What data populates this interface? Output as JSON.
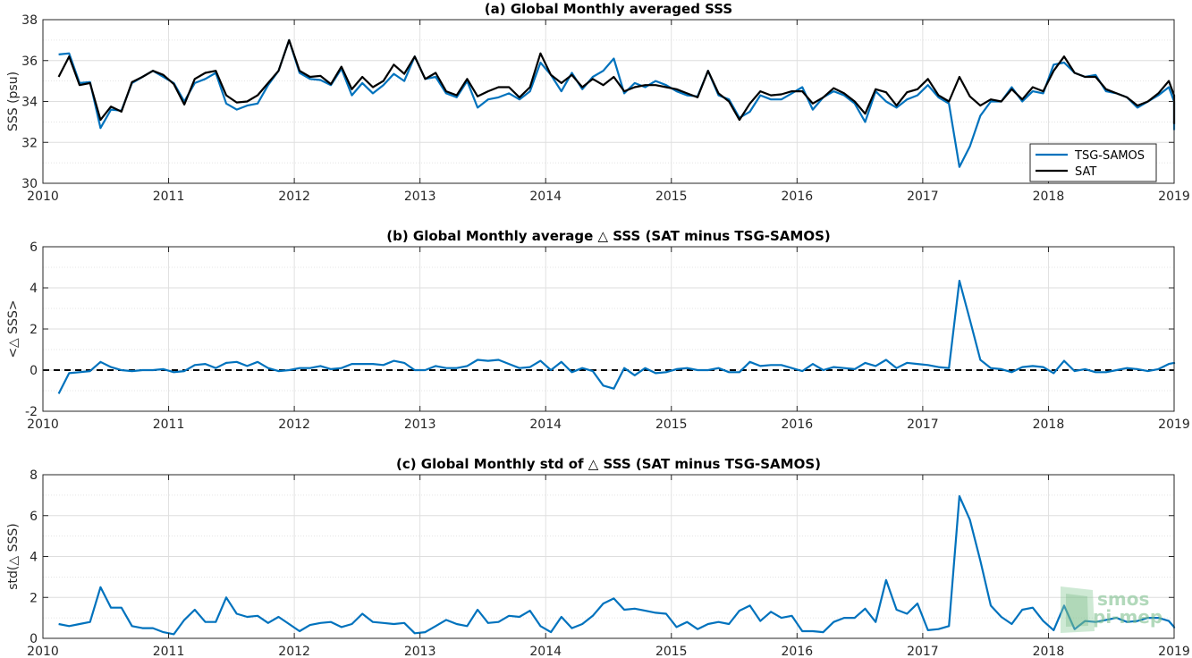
{
  "watermark": {
    "line1": "smos",
    "line2": "pi-mep"
  },
  "chart_data": [
    {
      "type": "line",
      "title": "(a) Global Monthly averaged SSS",
      "ylabel": "SSS (psu)",
      "xlabel": "",
      "xlim": [
        2010,
        2019
      ],
      "ylim": [
        30,
        38
      ],
      "xticks": [
        "2010",
        "2011",
        "2012",
        "2013",
        "2014",
        "2015",
        "2016",
        "2017",
        "2018",
        "2019"
      ],
      "yticks": [
        "30",
        "32",
        "34",
        "36",
        "38"
      ],
      "grid": true,
      "legend": "bottom-right",
      "series": [
        {
          "name": "TSG-SAMOS",
          "color": "#0072bd",
          "values": [
            36.3,
            36.35,
            34.9,
            34.95,
            32.7,
            33.6,
            33.55,
            34.9,
            35.2,
            35.5,
            35.2,
            34.9,
            34.0,
            34.9,
            35.1,
            35.4,
            33.9,
            33.6,
            33.8,
            33.9,
            34.8,
            35.5,
            37.0,
            35.4,
            35.1,
            35.05,
            34.8,
            35.6,
            34.3,
            34.9,
            34.4,
            34.8,
            35.35,
            35.0,
            36.2,
            35.1,
            35.2,
            34.4,
            34.2,
            35.0,
            33.7,
            34.1,
            34.2,
            34.4,
            34.1,
            34.5,
            35.9,
            35.3,
            34.5,
            35.4,
            34.6,
            35.2,
            35.5,
            36.1,
            34.4,
            34.9,
            34.7,
            35.0,
            34.8,
            34.5,
            34.3,
            34.25,
            35.5,
            34.3,
            34.1,
            33.2,
            33.5,
            34.3,
            34.1,
            34.1,
            34.4,
            34.7,
            33.6,
            34.2,
            34.5,
            34.3,
            33.9,
            33.0,
            34.5,
            34.0,
            33.7,
            34.1,
            34.3,
            34.8,
            34.2,
            33.9,
            30.8,
            31.8,
            33.3,
            34.0,
            34.0,
            34.7,
            34.0,
            34.5,
            34.4,
            35.8,
            35.9,
            35.4,
            35.2,
            35.3,
            34.5,
            34.4,
            34.2,
            33.7,
            34.0,
            34.3,
            34.7,
            34.0,
            32.6
          ]
        },
        {
          "name": "SAT",
          "color": "#000000",
          "values": [
            35.2,
            36.2,
            34.8,
            34.9,
            33.1,
            33.75,
            33.5,
            34.95,
            35.2,
            35.5,
            35.3,
            34.85,
            33.85,
            35.1,
            35.4,
            35.5,
            34.3,
            33.95,
            34.0,
            34.3,
            34.9,
            35.5,
            37.0,
            35.5,
            35.2,
            35.25,
            34.85,
            35.7,
            34.6,
            35.2,
            34.7,
            35.0,
            35.8,
            35.35,
            36.2,
            35.1,
            35.4,
            34.5,
            34.3,
            35.1,
            34.25,
            34.5,
            34.7,
            34.7,
            34.2,
            34.7,
            36.35,
            35.3,
            34.9,
            35.3,
            34.7,
            35.1,
            34.8,
            35.2,
            34.5,
            34.7,
            34.8,
            34.8,
            34.7,
            34.6,
            34.4,
            34.2,
            35.5,
            34.4,
            34.0,
            33.1,
            33.9,
            34.5,
            34.3,
            34.35,
            34.5,
            34.5,
            33.9,
            34.2,
            34.65,
            34.4,
            34.0,
            33.4,
            34.6,
            34.45,
            33.8,
            34.45,
            34.6,
            35.1,
            34.3,
            34.0,
            35.2,
            34.25,
            33.8,
            34.1,
            34.0,
            34.6,
            34.1,
            34.7,
            34.5,
            35.5,
            36.2,
            35.4,
            35.2,
            35.2,
            34.6,
            34.4,
            34.2,
            33.8,
            34.0,
            34.4,
            35.0,
            34.3,
            32.9
          ]
        }
      ]
    },
    {
      "type": "line",
      "title": "(b) Global Monthly average △ SSS (SAT minus TSG-SAMOS)",
      "ylabel": "<△ SSS>",
      "xlabel": "",
      "xlim": [
        2010,
        2019
      ],
      "ylim": [
        -2,
        6
      ],
      "xticks": [
        "2010",
        "2011",
        "2012",
        "2013",
        "2014",
        "2015",
        "2016",
        "2017",
        "2018",
        "2019"
      ],
      "yticks": [
        "-2",
        "0",
        "2",
        "4",
        "6"
      ],
      "grid": true,
      "reference_line": 0,
      "series": [
        {
          "name": "",
          "color": "#0072bd",
          "values": [
            -1.15,
            -0.15,
            -0.1,
            -0.05,
            0.4,
            0.15,
            0.0,
            -0.05,
            0.0,
            0.0,
            0.05,
            -0.1,
            -0.05,
            0.25,
            0.3,
            0.1,
            0.35,
            0.4,
            0.2,
            0.4,
            0.1,
            -0.05,
            0.0,
            0.1,
            0.1,
            0.2,
            0.05,
            0.1,
            0.3,
            0.3,
            0.3,
            0.25,
            0.45,
            0.35,
            0.0,
            0.0,
            0.2,
            0.1,
            0.1,
            0.2,
            0.5,
            0.45,
            0.5,
            0.3,
            0.1,
            0.15,
            0.45,
            0.0,
            0.4,
            -0.1,
            0.1,
            -0.05,
            -0.75,
            -0.9,
            0.1,
            -0.25,
            0.1,
            -0.15,
            -0.1,
            0.05,
            0.1,
            0.0,
            0.0,
            0.1,
            -0.1,
            -0.1,
            0.4,
            0.2,
            0.25,
            0.25,
            0.1,
            -0.05,
            0.3,
            0.0,
            0.15,
            0.1,
            0.05,
            0.35,
            0.2,
            0.5,
            0.1,
            0.35,
            0.3,
            0.25,
            0.15,
            0.1,
            4.35,
            2.45,
            0.5,
            0.1,
            0.05,
            -0.1,
            0.15,
            0.2,
            0.15,
            -0.15,
            0.45,
            -0.05,
            0.05,
            -0.1,
            -0.1,
            0.0,
            0.1,
            0.05,
            -0.05,
            0.05,
            0.3,
            0.35,
            0.3
          ]
        }
      ]
    },
    {
      "type": "line",
      "title": "(c) Global Monthly std of △ SSS (SAT minus TSG-SAMOS)",
      "ylabel": "std(△ SSS)",
      "xlabel": "",
      "xlim": [
        2010,
        2019
      ],
      "ylim": [
        0,
        8
      ],
      "xticks": [
        "2010",
        "2011",
        "2012",
        "2013",
        "2014",
        "2015",
        "2016",
        "2017",
        "2018",
        "2019"
      ],
      "yticks": [
        "0",
        "2",
        "4",
        "6",
        "8"
      ],
      "grid": true,
      "series": [
        {
          "name": "",
          "color": "#0072bd",
          "values": [
            0.7,
            0.6,
            0.7,
            0.8,
            2.5,
            1.5,
            1.5,
            0.6,
            0.5,
            0.5,
            0.3,
            0.2,
            0.9,
            1.4,
            0.8,
            0.8,
            2.0,
            1.2,
            1.05,
            1.1,
            0.75,
            1.05,
            0.7,
            0.35,
            0.65,
            0.75,
            0.8,
            0.55,
            0.7,
            1.2,
            0.8,
            0.75,
            0.7,
            0.75,
            0.25,
            0.3,
            0.6,
            0.9,
            0.7,
            0.6,
            1.4,
            0.75,
            0.8,
            1.1,
            1.05,
            1.35,
            0.6,
            0.3,
            1.05,
            0.5,
            0.7,
            1.1,
            1.7,
            1.95,
            1.4,
            1.45,
            1.35,
            1.25,
            1.2,
            0.55,
            0.8,
            0.45,
            0.7,
            0.8,
            0.7,
            1.35,
            1.6,
            0.85,
            1.3,
            1.0,
            1.1,
            0.35,
            0.35,
            0.3,
            0.8,
            1.0,
            1.0,
            1.45,
            0.8,
            2.85,
            1.4,
            1.2,
            1.7,
            0.4,
            0.45,
            0.6,
            6.95,
            5.8,
            3.8,
            1.6,
            1.05,
            0.7,
            1.4,
            1.5,
            0.85,
            0.4,
            1.6,
            0.45,
            0.85,
            0.8,
            0.9,
            1.0,
            0.8,
            0.85,
            1.0,
            1.0,
            0.85,
            0.55,
            0.5
          ]
        }
      ]
    }
  ]
}
